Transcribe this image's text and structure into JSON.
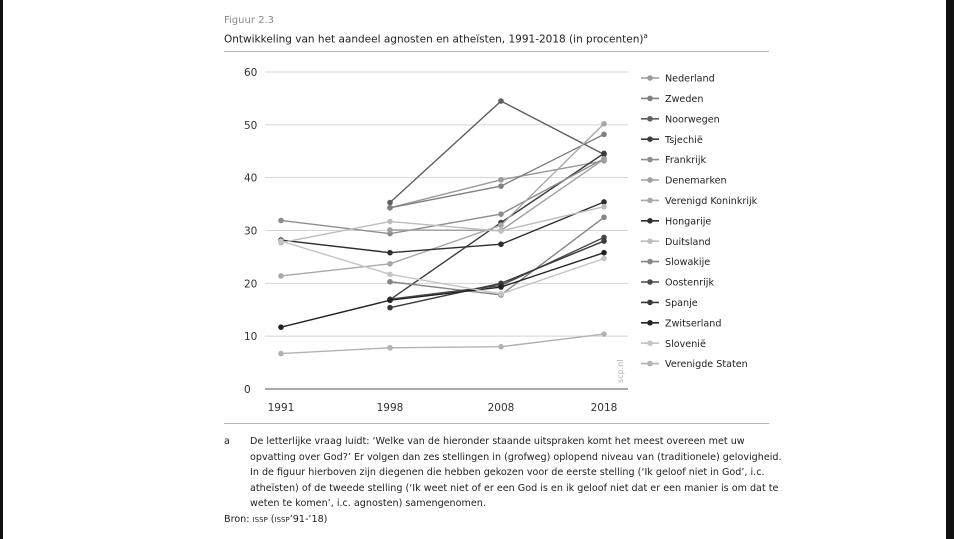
{
  "figure": {
    "label": "Figuur 2.3",
    "title": "Ontwikkeling van het aandeel agnosten en atheïsten, 1991-2018 (in procenten)",
    "title_sup": "a"
  },
  "footnote": {
    "letter": "a",
    "text": "De letterlijke vraag luidt: ‘Welke van de hieronder staande uitspraken komt het meest overeen met uw opvatting over God?’ Er volgen dan zes stellingen in (grofweg) oplopend niveau van (traditionele) gelovigheid. In de figuur hierboven zijn diegenen die hebben gekozen voor de eerste stelling (‘Ik geloof niet in God’, i.c. atheïsten) of de tweede stelling (‘Ik weet niet of er een God is en ik geloof niet dat er een manier is om dat te weten te komen’, i.c. agnosten) samengenomen."
  },
  "source": {
    "prefix": "Bron: ",
    "text": "issp (issp’91-’18)"
  },
  "chart_data": {
    "type": "line",
    "x": [
      "1991",
      "1998",
      "2008",
      "2018"
    ],
    "ylim": [
      0,
      60
    ],
    "yticks": [
      0,
      10,
      20,
      30,
      40,
      50,
      60
    ],
    "grid": true,
    "legend_position": "right",
    "watermark": "scp.nl",
    "series": [
      {
        "name": "Nederland",
        "color": "#9a9a9a",
        "values": [
          null,
          34.3,
          39.6,
          43.2
        ]
      },
      {
        "name": "Zweden",
        "color": "#808080",
        "values": [
          null,
          34.3,
          38.4,
          48.2
        ]
      },
      {
        "name": "Noorwegen",
        "color": "#5e5e5e",
        "values": [
          null,
          35.3,
          54.5,
          44.4
        ]
      },
      {
        "name": "Tsjechië",
        "color": "#3c3c3c",
        "values": [
          null,
          16.9,
          31.5,
          44.6
        ]
      },
      {
        "name": "Frankrijk",
        "color": "#8e8e8e",
        "values": [
          31.9,
          29.4,
          33.1,
          43.6
        ]
      },
      {
        "name": "Denemarken",
        "color": "#a0a0a0",
        "values": [
          null,
          30.1,
          30.0,
          43.5
        ]
      },
      {
        "name": "Verenigd Koninkrijk",
        "color": "#a8a8a8",
        "values": [
          21.4,
          23.7,
          31.0,
          50.2
        ]
      },
      {
        "name": "Hongarije",
        "color": "#2e2e2e",
        "values": [
          28.2,
          25.8,
          27.4,
          35.4
        ]
      },
      {
        "name": "Duitsland",
        "color": "#bdbdbd",
        "values": [
          27.7,
          31.7,
          29.9,
          34.5
        ]
      },
      {
        "name": "Slowakije",
        "color": "#858585",
        "values": [
          null,
          20.3,
          17.8,
          32.5
        ]
      },
      {
        "name": "Oostenrijk",
        "color": "#4a4a4a",
        "values": [
          null,
          17.0,
          19.6,
          28.7
        ]
      },
      {
        "name": "Spanje",
        "color": "#3a3a3a",
        "values": [
          null,
          15.4,
          20.0,
          28.0
        ]
      },
      {
        "name": "Zwitserland",
        "color": "#222222",
        "values": [
          11.7,
          16.8,
          19.3,
          25.8
        ]
      },
      {
        "name": "Slovenië",
        "color": "#c4c4c4",
        "values": [
          28.0,
          21.7,
          18.0,
          24.7
        ]
      },
      {
        "name": "Verenigde Staten",
        "color": "#b2b2b2",
        "values": [
          6.7,
          7.8,
          8.0,
          10.4
        ]
      }
    ]
  }
}
